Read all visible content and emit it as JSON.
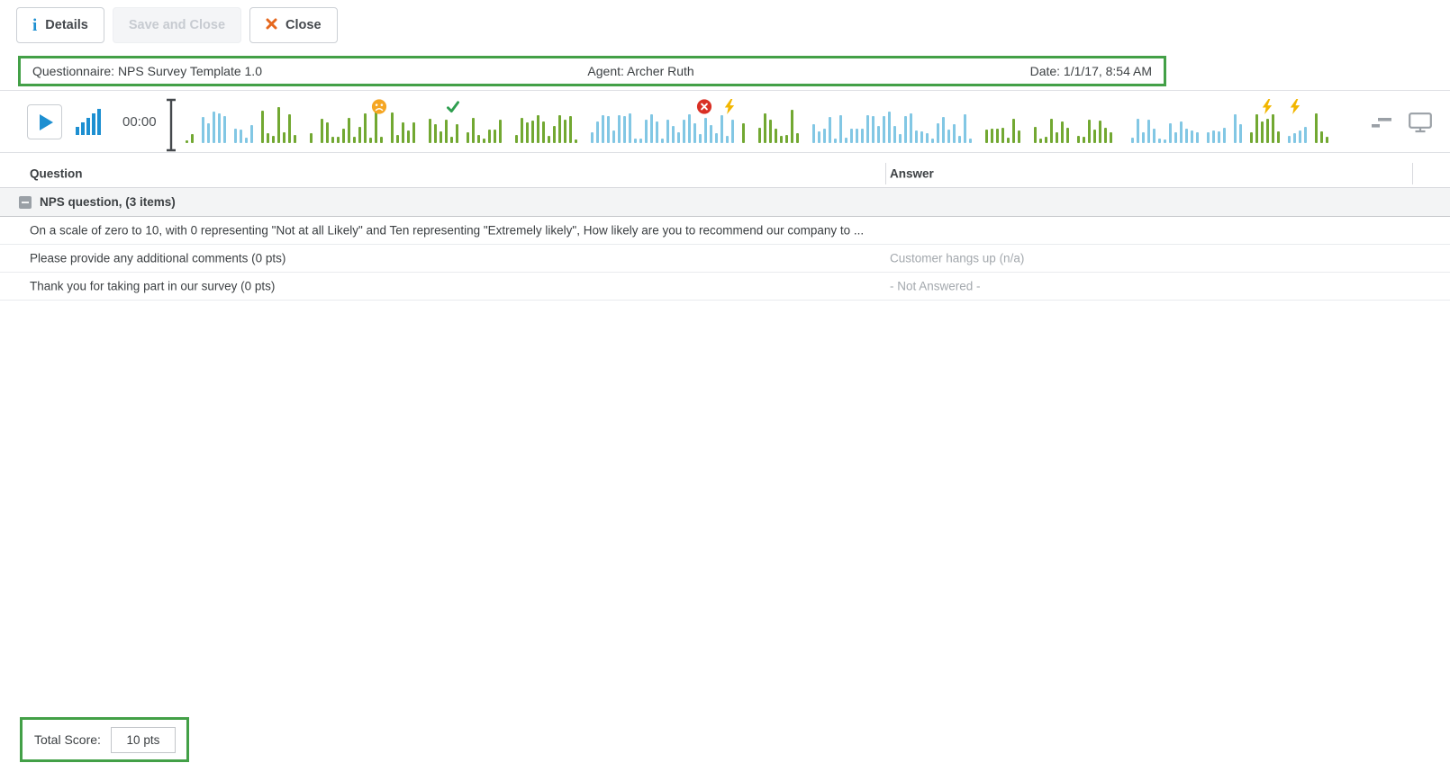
{
  "toolbar": {
    "details": "Details",
    "save_and_close": "Save and Close",
    "close": "Close"
  },
  "header_bar": {
    "questionnaire": "Questionnaire: NPS Survey Template 1.0",
    "agent": "Agent: Archer Ruth",
    "date": "Date: 1/1/17, 8:54 AM",
    "border_color": "#43A047"
  },
  "player": {
    "time": "00:00",
    "colors": {
      "agent_wave": "#72A832",
      "customer_wave": "#82C7E4",
      "accent_blue": "#1D8FD1",
      "marker_negative": "#F5A623",
      "marker_positive": "#2E9E4F",
      "marker_error": "#D93025",
      "marker_bolt": "#F2B600",
      "icon_gray": "#9AA0A6"
    },
    "markers": [
      {
        "type": "sad",
        "pos": 0.173
      },
      {
        "type": "check",
        "pos": 0.237
      },
      {
        "type": "error",
        "pos": 0.455
      },
      {
        "type": "bolt",
        "pos": 0.477
      },
      {
        "type": "bolt",
        "pos": 0.944
      },
      {
        "type": "bolt",
        "pos": 0.968
      }
    ],
    "segments": [
      {
        "s": 0.004,
        "e": 0.01,
        "c": "g",
        "a": 0.3
      },
      {
        "s": 0.016,
        "e": 0.041,
        "c": "b",
        "a": 0.85
      },
      {
        "s": 0.045,
        "e": 0.065,
        "c": "b",
        "a": 0.5
      },
      {
        "s": 0.067,
        "e": 0.102,
        "c": "g",
        "a": 1.0
      },
      {
        "s": 0.11,
        "e": 0.115,
        "c": "g",
        "a": 0.85
      },
      {
        "s": 0.121,
        "e": 0.175,
        "c": "g",
        "a": 1.0
      },
      {
        "s": 0.181,
        "e": 0.205,
        "c": "g",
        "a": 0.9
      },
      {
        "s": 0.213,
        "e": 0.241,
        "c": "g",
        "a": 0.95
      },
      {
        "s": 0.246,
        "e": 0.281,
        "c": "g",
        "a": 0.7
      },
      {
        "s": 0.287,
        "e": 0.344,
        "c": "g",
        "a": 0.8
      },
      {
        "s": 0.353,
        "e": 0.48,
        "c": "b",
        "a": 0.8
      },
      {
        "s": 0.486,
        "e": 0.49,
        "c": "g",
        "a": 0.8
      },
      {
        "s": 0.498,
        "e": 0.537,
        "c": "g",
        "a": 1.0
      },
      {
        "s": 0.544,
        "e": 0.689,
        "c": "b",
        "a": 0.85
      },
      {
        "s": 0.697,
        "e": 0.731,
        "c": "g",
        "a": 0.9
      },
      {
        "s": 0.737,
        "e": 0.77,
        "c": "g",
        "a": 0.85
      },
      {
        "s": 0.776,
        "e": 0.809,
        "c": "g",
        "a": 0.8
      },
      {
        "s": 0.825,
        "e": 0.884,
        "c": "b",
        "a": 0.7
      },
      {
        "s": 0.89,
        "e": 0.908,
        "c": "b",
        "a": 0.5
      },
      {
        "s": 0.9125,
        "e": 0.9227,
        "c": "b",
        "a": 0.85
      },
      {
        "s": 0.926,
        "e": 0.955,
        "c": "g",
        "a": 1.0
      },
      {
        "s": 0.958,
        "e": 0.977,
        "c": "b",
        "a": 0.45
      },
      {
        "s": 0.982,
        "e": 0.998,
        "c": "g",
        "a": 0.95
      }
    ]
  },
  "table": {
    "columns": [
      "Question",
      "Answer"
    ],
    "group_label": "NPS question, (3 items)",
    "rows": [
      {
        "question": "On a scale of zero to 10, with 0 representing \"Not at all Likely\" and Ten representing \"Extremely likely\", How likely are you to recommend our company to ...",
        "answer": ""
      },
      {
        "question": "Please provide any additional comments (0 pts)",
        "answer": "Customer hangs up (n/a)"
      },
      {
        "question": "Thank you for taking part in our survey (0 pts)",
        "answer": "- Not Answered -"
      }
    ]
  },
  "footer": {
    "total_score_label": "Total Score:",
    "total_score_value": "10 pts"
  }
}
